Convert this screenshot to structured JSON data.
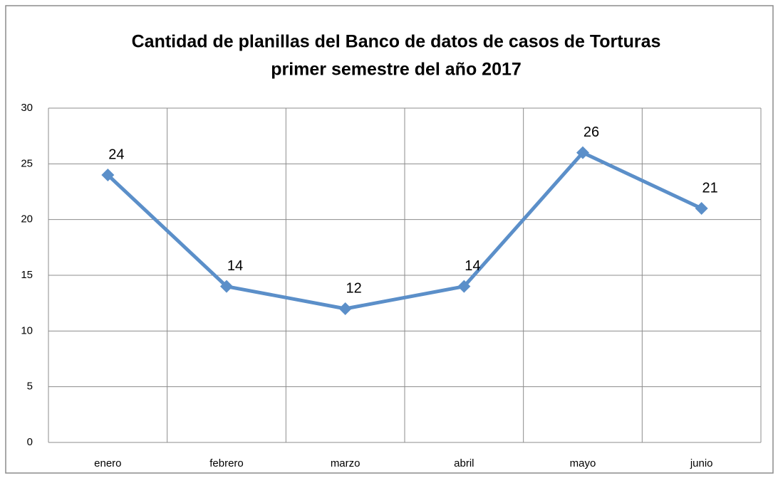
{
  "chart_data": {
    "type": "line",
    "title": [
      "Cantidad de planillas del Banco de datos de casos de Torturas",
      "primer semestre del año 2017"
    ],
    "categories": [
      "enero",
      "febrero",
      "marzo",
      "abril",
      "mayo",
      "junio"
    ],
    "values": [
      24,
      14,
      12,
      14,
      26,
      21
    ],
    "color": "#5b8fc9",
    "ylim": [
      0,
      30
    ],
    "yticks": [
      0,
      5,
      10,
      15,
      20,
      25,
      30
    ],
    "grid": true
  }
}
